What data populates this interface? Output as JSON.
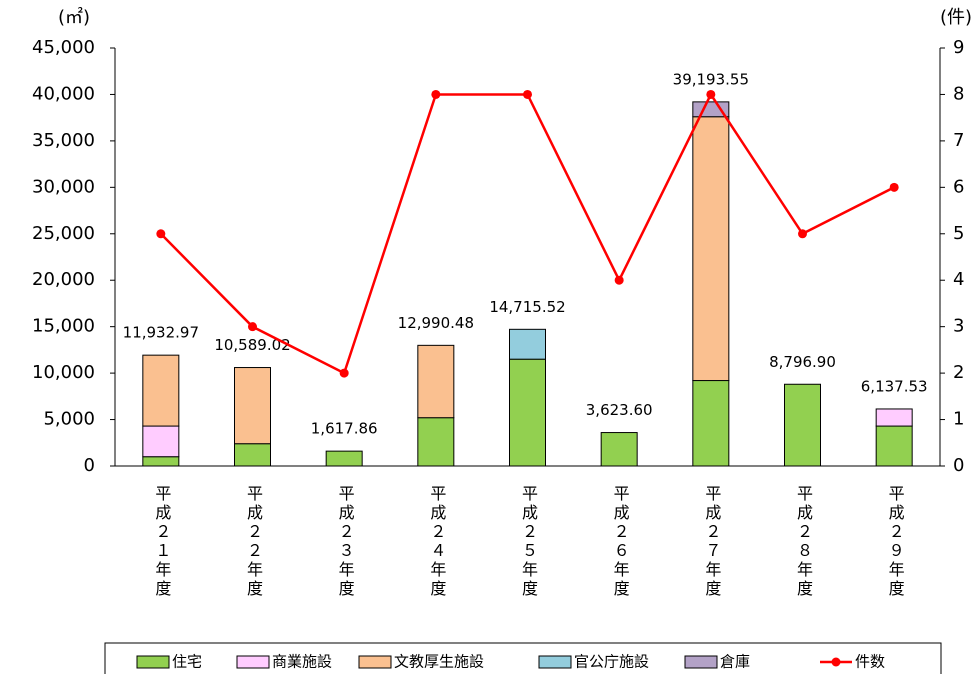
{
  "chart_data": {
    "type": "bar",
    "y_unit": "(㎡)",
    "y2_unit": "(件)",
    "categories": [
      "平成２１年度",
      "平成２２年度",
      "平成２３年度",
      "平成２４年度",
      "平成２５年度",
      "平成２６年度",
      "平成２７年度",
      "平成２８年度",
      "平成２９年度"
    ],
    "series": [
      {
        "name": "住宅",
        "color": "#92d050",
        "values": [
          1000,
          2400,
          1600,
          5200,
          11500,
          3600,
          9200,
          8800,
          4300
        ]
      },
      {
        "name": "商業施設",
        "color": "#ffccff",
        "values": [
          3300,
          0,
          0,
          0,
          0,
          0,
          0,
          0,
          1840
        ]
      },
      {
        "name": "文教厚生施設",
        "color": "#fac090",
        "values": [
          7633,
          8200,
          0,
          7790,
          0,
          0,
          28400,
          0,
          0
        ]
      },
      {
        "name": "官公庁施設",
        "color": "#93cddd",
        "values": [
          0,
          0,
          0,
          0,
          3215,
          0,
          0,
          0,
          0
        ]
      },
      {
        "name": "倉庫",
        "color": "#b3a2c7",
        "values": [
          0,
          0,
          0,
          0,
          0,
          0,
          1600,
          0,
          0
        ]
      },
      {
        "name": "件数",
        "color": "#ff0000",
        "type": "line",
        "axis": "y2",
        "values": [
          5,
          3,
          2,
          8,
          8,
          4,
          8,
          5,
          6
        ]
      }
    ],
    "totals": [
      11932.97,
      10589.02,
      1617.86,
      12990.48,
      14715.52,
      3623.6,
      39193.55,
      8796.9,
      6137.53
    ],
    "value_labels": [
      "11,932.97",
      "10,589.02",
      "1,617.86",
      "12,990.48",
      "14,715.52",
      "3,623.60",
      "39,193.55",
      "8,796.90",
      "6,137.53"
    ],
    "ylim": [
      0,
      45000
    ],
    "yticks": [
      0,
      {
        "value": 5000,
        "label": "5,000"
      },
      {
        "value": 10000,
        "label": "10,000"
      },
      {
        "value": 15000,
        "label": "15,000"
      },
      {
        "value": 20000,
        "label": "20,000"
      },
      {
        "value": 25000,
        "label": "25,000"
      },
      {
        "value": 30000,
        "label": "30,000"
      },
      {
        "value": 35000,
        "label": "35,000"
      },
      {
        "value": 40000,
        "label": "40,000"
      },
      {
        "value": 45000,
        "label": "45,000"
      }
    ],
    "y2lim": [
      0,
      9
    ],
    "y2ticks": [
      0,
      1,
      2,
      3,
      4,
      5,
      6,
      7,
      8,
      9
    ],
    "legend": "bottom"
  }
}
